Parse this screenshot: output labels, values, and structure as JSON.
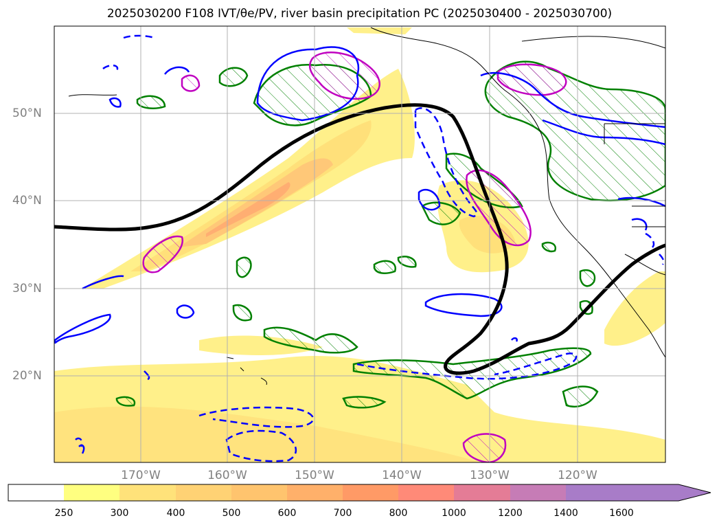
{
  "title": "2025030200 F108 IVT/θe/PV, river basin precipitation PC (2025030400 - 2025030700)",
  "lat_labels": [
    "50°N",
    "40°N",
    "30°N",
    "20°N"
  ],
  "lon_labels": [
    "170°W",
    "160°W",
    "150°W",
    "140°W",
    "130°W",
    "120°W"
  ],
  "colorbar": {
    "ticks": [
      "250",
      "300",
      "400",
      "500",
      "600",
      "700",
      "800",
      "1000",
      "1200",
      "1400",
      "1600"
    ],
    "colors": [
      "#ffffff",
      "#ffff80",
      "#ffe27a",
      "#ffd274",
      "#ffc46e",
      "#ffb06a",
      "#ff9a66",
      "#ff8a78",
      "#e47c96",
      "#c67cb6",
      "#a87cc8"
    ],
    "extend": "max"
  },
  "map": {
    "extent_lon": [
      -180,
      -110
    ],
    "extent_lat": [
      10,
      60
    ],
    "contour_colors": {
      "ivt_fill": "#ffee66",
      "theta_e": "#0000ff",
      "pv": "#008000",
      "precip": "#c000c0",
      "jet": "#000000"
    }
  }
}
